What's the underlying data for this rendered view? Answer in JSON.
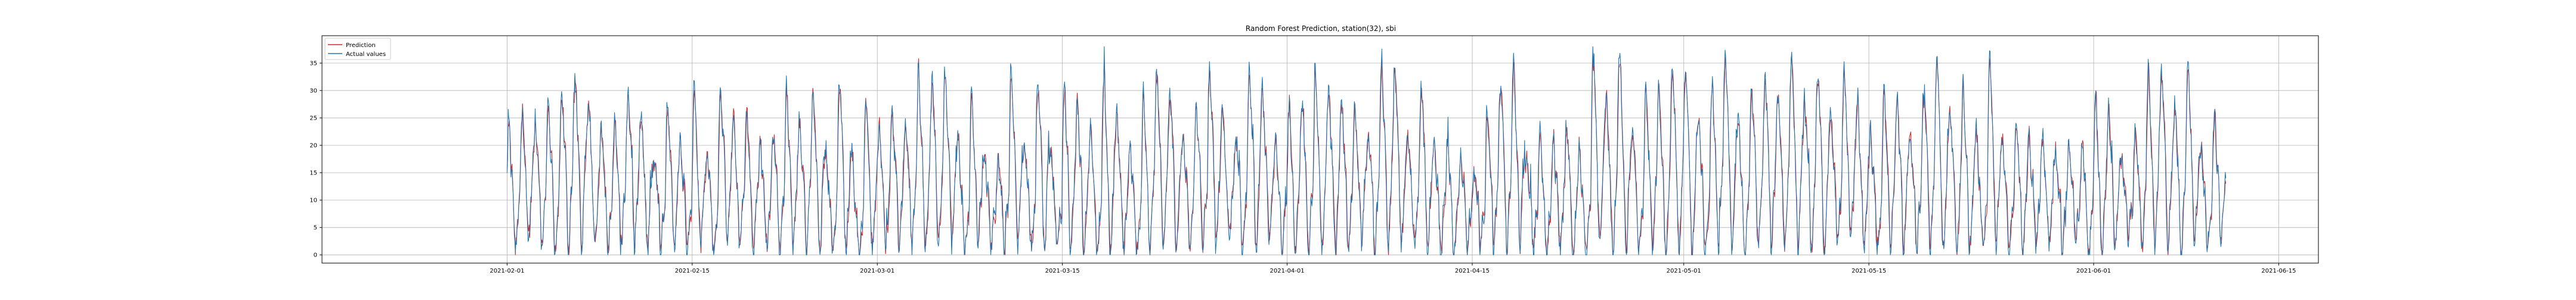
{
  "colors": {
    "prediction": "#d62728",
    "actual": "#1f77b4",
    "grid": "#b0b0b0",
    "axes": "#000000",
    "background": "#ffffff"
  },
  "chart_data": {
    "type": "line",
    "title": "Random Forest Prediction, station(32), sbi",
    "xlabel": "",
    "ylabel": "",
    "grid": true,
    "legend_position": "top-left",
    "xlim": [
      "2021-01-18",
      "2021-06-18"
    ],
    "ylim": [
      -1.5,
      40
    ],
    "x_tick_labels": [
      "2021-02-01",
      "2021-02-15",
      "2021-03-01",
      "2021-03-15",
      "2021-04-01",
      "2021-04-15",
      "2021-05-01",
      "2021-05-15",
      "2021-06-01",
      "2021-06-15"
    ],
    "y_tick_labels": [
      "0",
      "5",
      "10",
      "15",
      "20",
      "25",
      "30",
      "35"
    ],
    "x_range": [
      "2021-02-01",
      "2021-06-11"
    ],
    "sampling": "hourly",
    "series": [
      {
        "name": "Prediction",
        "color": "#d62728",
        "min": 0,
        "max": 36
      },
      {
        "name": "Actual values",
        "color": "#1f77b4",
        "min": 0,
        "max": 38
      }
    ]
  }
}
